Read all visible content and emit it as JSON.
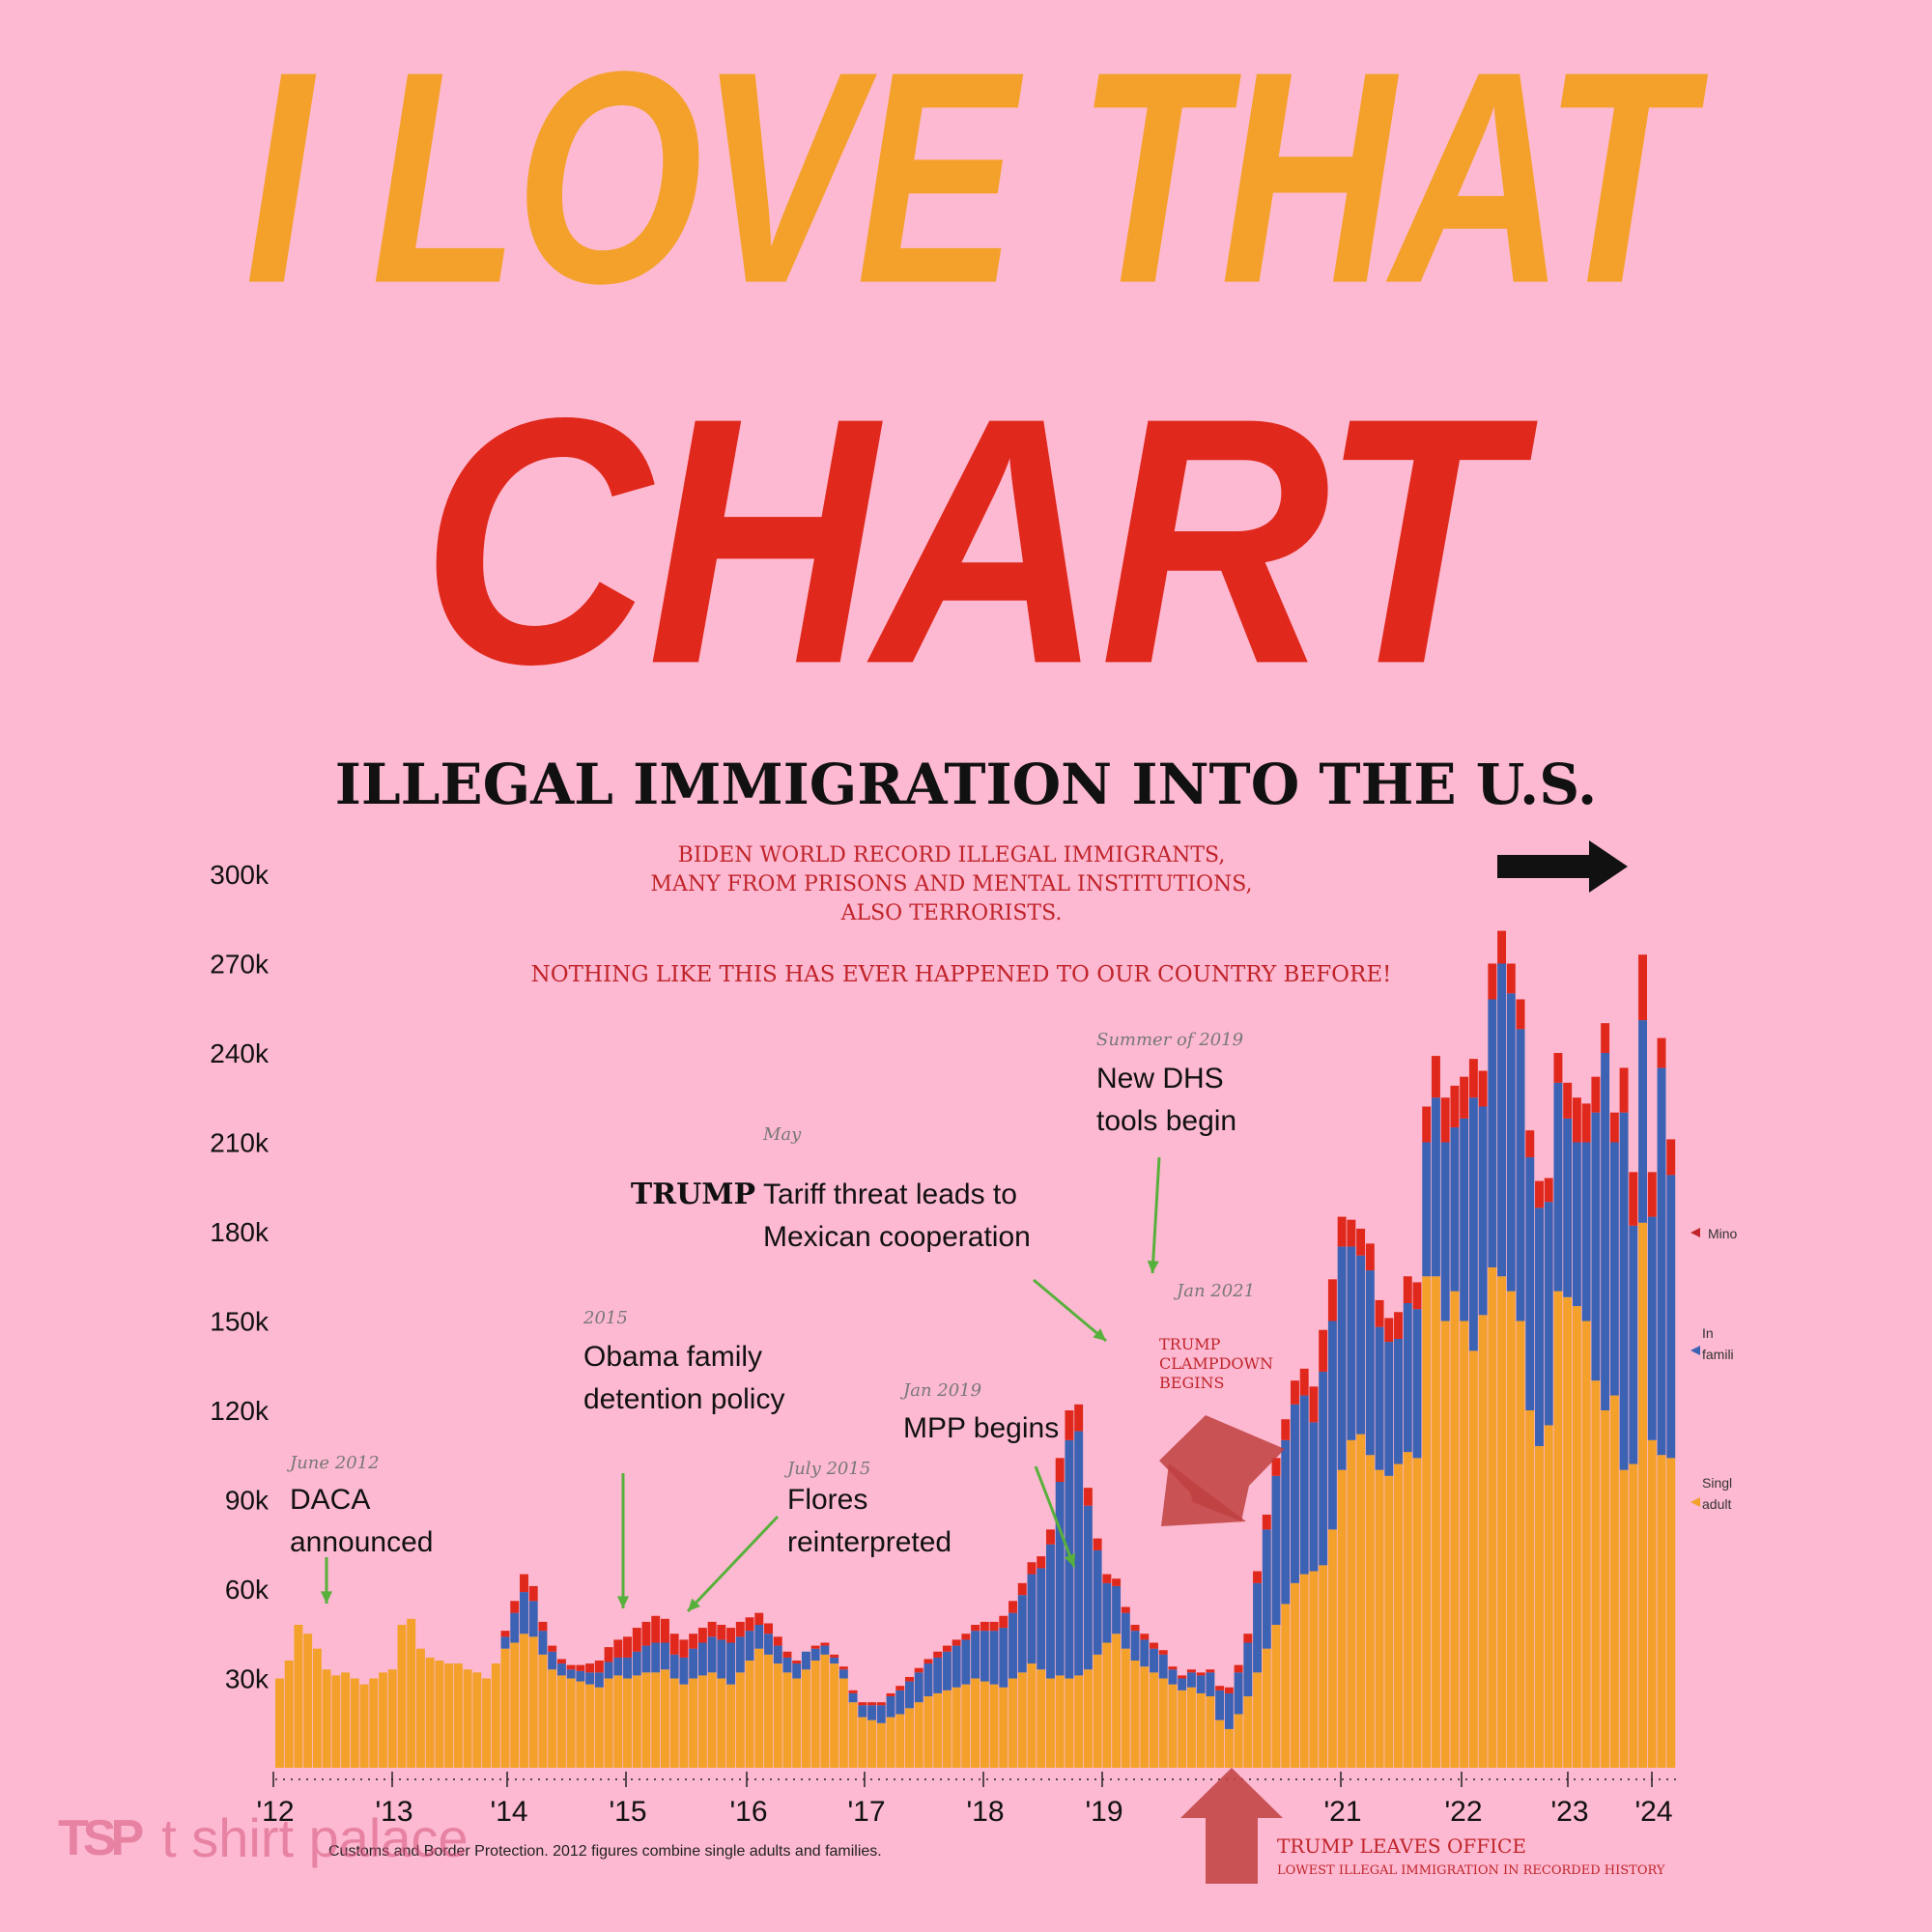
{
  "headline": {
    "line1": "I LOVE THAT",
    "line2": "CHART"
  },
  "colors": {
    "orange": "#f3a12b",
    "red": "#e0281c",
    "blue": "#3b62b3",
    "background": "#fdb9d1",
    "green": "#58b03c"
  },
  "chart_data": {
    "type": "bar",
    "stacked": true,
    "title": "ILLEGAL IMMIGRATION INTO THE U.S.",
    "xlabel": "",
    "ylabel": "",
    "ylim": [
      0,
      300000
    ],
    "y_ticks": [
      "30k",
      "60k",
      "90k",
      "120k",
      "150k",
      "180k",
      "210k",
      "240k",
      "270k",
      "300k"
    ],
    "x_tick_labels": [
      "'12",
      "'13",
      "'14",
      "'15",
      "'16",
      "'17",
      "'18",
      "'19",
      "'21",
      "'22",
      "'23",
      "'24"
    ],
    "series_labels": {
      "minors": "Mino",
      "families_1": "In",
      "families_2": "famili",
      "adults_1": "Singl",
      "adults_2": "adult"
    },
    "monthly_start": "2012-01",
    "series": [
      {
        "key": "adults",
        "color": "#f3a12b",
        "values": [
          30000,
          36000,
          48000,
          45000,
          40000,
          33000,
          31000,
          32000,
          30000,
          28000,
          30000,
          32000,
          33000,
          48000,
          50000,
          40000,
          37000,
          36000,
          35000,
          35000,
          33000,
          32000,
          30000,
          35000,
          40000,
          42000,
          45000,
          44000,
          38000,
          33000,
          31000,
          30000,
          29000,
          28000,
          27000,
          30000,
          31000,
          30000,
          31000,
          32000,
          32000,
          33000,
          30000,
          28000,
          30000,
          31000,
          32000,
          30000,
          28000,
          32000,
          36000,
          40000,
          38000,
          35000,
          32000,
          30000,
          33000,
          36000,
          38000,
          35000,
          30000,
          22000,
          17000,
          16000,
          15000,
          17000,
          18000,
          20000,
          22000,
          24000,
          25000,
          26000,
          27000,
          28000,
          30000,
          29000,
          28000,
          27000,
          30000,
          32000,
          35000,
          33000,
          30000,
          31000,
          30000,
          31000,
          33000,
          38000,
          42000,
          45000,
          40000,
          36000,
          34000,
          32000,
          30000,
          28000,
          26000,
          27000,
          25000,
          24000,
          16000,
          13000,
          18000,
          24000,
          32000,
          40000,
          48000,
          55000,
          62000,
          65000,
          66000,
          68000,
          80000,
          100000,
          110000,
          112000,
          105000,
          100000,
          98000,
          102000,
          106000,
          104000,
          165000,
          165000,
          150000,
          160000,
          150000,
          140000,
          152000,
          168000,
          165000,
          160000,
          150000,
          120000,
          108000,
          115000,
          160000,
          158000,
          155000,
          150000,
          130000,
          120000,
          125000,
          100000,
          102000,
          183000,
          110000,
          105000,
          104000
        ]
      },
      {
        "key": "families",
        "color": "#3b62b3",
        "values": [
          0,
          0,
          0,
          0,
          0,
          0,
          0,
          0,
          0,
          0,
          0,
          0,
          0,
          0,
          0,
          0,
          0,
          0,
          0,
          0,
          0,
          0,
          0,
          0,
          4000,
          10000,
          14000,
          12000,
          8000,
          6000,
          4000,
          3000,
          3500,
          4000,
          5000,
          5500,
          6000,
          7000,
          8000,
          9000,
          10000,
          9000,
          8000,
          9000,
          10000,
          11000,
          12000,
          13000,
          14000,
          12000,
          10000,
          8000,
          7000,
          6000,
          5000,
          5000,
          6000,
          4000,
          3000,
          2000,
          3000,
          3000,
          4000,
          5000,
          6000,
          7000,
          8000,
          9000,
          10000,
          11000,
          12000,
          13000,
          14000,
          15000,
          16000,
          17000,
          18000,
          20000,
          22000,
          26000,
          30000,
          34000,
          45000,
          65000,
          80000,
          82000,
          55000,
          35000,
          20000,
          16000,
          12000,
          10000,
          9000,
          8000,
          8000,
          5000,
          4000,
          5000,
          6000,
          8000,
          10000,
          12000,
          14000,
          18000,
          30000,
          40000,
          50000,
          55000,
          60000,
          60000,
          50000,
          65000,
          70000,
          75000,
          65000,
          60000,
          62000,
          48000,
          45000,
          42000,
          50000,
          50000,
          45000,
          60000,
          60000,
          55000,
          68000,
          85000,
          70000,
          90000,
          105000,
          100000,
          98000,
          85000,
          80000,
          75000,
          70000,
          60000,
          55000,
          60000,
          90000,
          120000,
          85000,
          120000,
          80000,
          68000,
          75000,
          130000,
          95000,
          70000,
          65000,
          70000,
          72000
        ]
      },
      {
        "key": "minors",
        "color": "#e0281c",
        "values": [
          0,
          0,
          0,
          0,
          0,
          0,
          0,
          0,
          0,
          0,
          0,
          0,
          0,
          0,
          0,
          0,
          0,
          0,
          0,
          0,
          0,
          0,
          0,
          0,
          2000,
          4000,
          6000,
          5000,
          3000,
          2000,
          1500,
          1500,
          2000,
          3000,
          4000,
          5000,
          6000,
          7000,
          8000,
          8000,
          9000,
          8000,
          7000,
          6000,
          5000,
          5000,
          5000,
          5000,
          5000,
          5000,
          4500,
          4000,
          3500,
          3000,
          2000,
          1000,
          0,
          1000,
          1000,
          1000,
          1000,
          1000,
          1000,
          1000,
          1000,
          1000,
          1500,
          1500,
          1500,
          1500,
          2000,
          2000,
          2000,
          2000,
          2000,
          3000,
          3000,
          4000,
          4000,
          4000,
          4000,
          4000,
          5000,
          8000,
          10000,
          9000,
          6000,
          4000,
          3000,
          2500,
          2000,
          2000,
          2000,
          2000,
          1500,
          1000,
          1000,
          1000,
          1000,
          1000,
          1500,
          2000,
          2500,
          3000,
          4000,
          5000,
          6000,
          7000,
          8000,
          9000,
          12000,
          14000,
          14000,
          10000,
          9000,
          9000,
          9000,
          9000,
          8000,
          9000,
          9000,
          9000,
          12000,
          14000,
          15000,
          14000,
          14000,
          13000,
          12000,
          12000,
          11000,
          10000,
          10000,
          9000,
          9000,
          8000,
          10000,
          12000,
          15000,
          13000,
          12000,
          10000,
          10000,
          15000,
          18000,
          22000,
          15000,
          10000,
          12000,
          14000,
          12000
        ]
      }
    ],
    "annotations": [
      {
        "date": "June 2012",
        "lines": [
          "DACA",
          "announced"
        ]
      },
      {
        "date": "2015",
        "lines": [
          "Obama family",
          "detention policy"
        ]
      },
      {
        "date": "July 2015",
        "lines": [
          "Flores",
          "reinterpreted"
        ]
      },
      {
        "date": "May",
        "prefix": "TRUMP",
        "lines": [
          "Tariff threat leads to",
          "Mexican cooperation"
        ]
      },
      {
        "date": "Jan 2019",
        "lines": [
          "MPP begins"
        ]
      },
      {
        "date": "Summer of 2019",
        "lines": [
          "New DHS",
          "tools begin"
        ]
      },
      {
        "date": "Jan 2021",
        "lines": []
      }
    ],
    "notes": {
      "biden_record": [
        "BIDEN WORLD RECORD ILLEGAL IMMIGRANTS,",
        "MANY FROM PRISONS AND MENTAL INSTITUTIONS,",
        "ALSO TERRORISTS."
      ],
      "nothing_like": "NOTHING LIKE THIS HAS EVER HAPPENED TO OUR COUNTRY BEFORE!",
      "clampdown": [
        "TRUMP",
        "CLAMPDOWN",
        "BEGINS"
      ],
      "leaves_office": "TRUMP LEAVES OFFICE",
      "lowest": "LOWEST ILLEGAL IMMIGRATION IN RECORDED HISTORY"
    }
  },
  "source_text": "Customs and Border Protection. 2012 figures combine single adults and families.",
  "watermark": {
    "logo": "TSP",
    "text": "t shirt palace"
  }
}
